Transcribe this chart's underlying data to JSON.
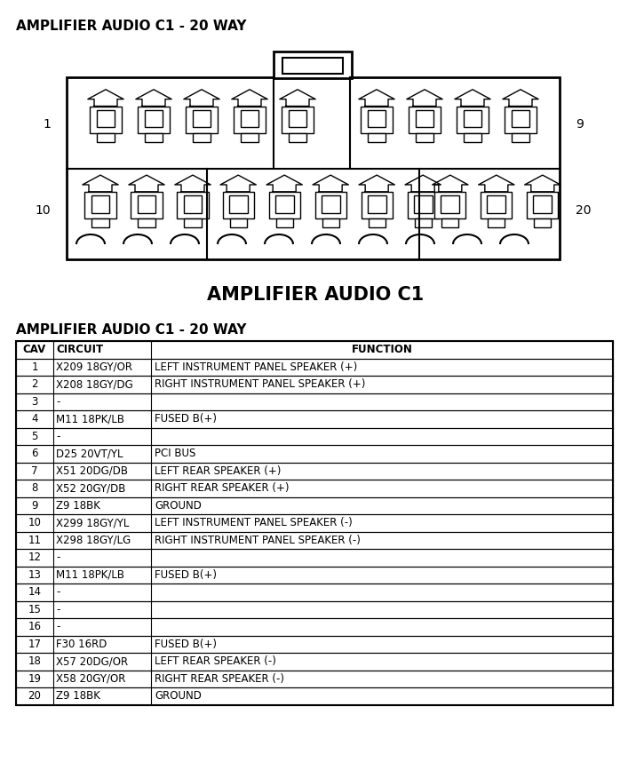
{
  "title_top": "AMPLIFIER AUDIO C1 - 20 WAY",
  "connector_label": "AMPLIFIER AUDIO C1",
  "table_title": "AMPLIFIER AUDIO C1 - 20 WAY",
  "col_headers": [
    "CAV",
    "CIRCUIT",
    "FUNCTION"
  ],
  "rows": [
    [
      "1",
      "X209 18GY/OR",
      "LEFT INSTRUMENT PANEL SPEAKER (+)"
    ],
    [
      "2",
      "X208 18GY/DG",
      "RIGHT INSTRUMENT PANEL SPEAKER (+)"
    ],
    [
      "3",
      "-",
      ""
    ],
    [
      "4",
      "M11 18PK/LB",
      "FUSED B(+)"
    ],
    [
      "5",
      "-",
      ""
    ],
    [
      "6",
      "D25 20VT/YL",
      "PCI BUS"
    ],
    [
      "7",
      "X51 20DG/DB",
      "LEFT REAR SPEAKER (+)"
    ],
    [
      "8",
      "X52 20GY/DB",
      "RIGHT REAR SPEAKER (+)"
    ],
    [
      "9",
      "Z9 18BK",
      "GROUND"
    ],
    [
      "10",
      "X299 18GY/YL",
      "LEFT INSTRUMENT PANEL SPEAKER (-)"
    ],
    [
      "11",
      "X298 18GY/LG",
      "RIGHT INSTRUMENT PANEL SPEAKER (-)"
    ],
    [
      "12",
      "-",
      ""
    ],
    [
      "13",
      "M11 18PK/LB",
      "FUSED B(+)"
    ],
    [
      "14",
      "-",
      ""
    ],
    [
      "15",
      "-",
      ""
    ],
    [
      "16",
      "-",
      ""
    ],
    [
      "17",
      "F30 16RD",
      "FUSED B(+)"
    ],
    [
      "18",
      "X57 20DG/OR",
      "LEFT REAR SPEAKER (-)"
    ],
    [
      "19",
      "X58 20GY/OR",
      "RIGHT REAR SPEAKER (-)"
    ],
    [
      "20",
      "Z9 18BK",
      "GROUND"
    ]
  ],
  "bg_color": "#ffffff",
  "text_color": "#000000",
  "label_left_top": "1",
  "label_left_bottom": "10",
  "label_right_top": "9",
  "label_right_bottom": "20"
}
